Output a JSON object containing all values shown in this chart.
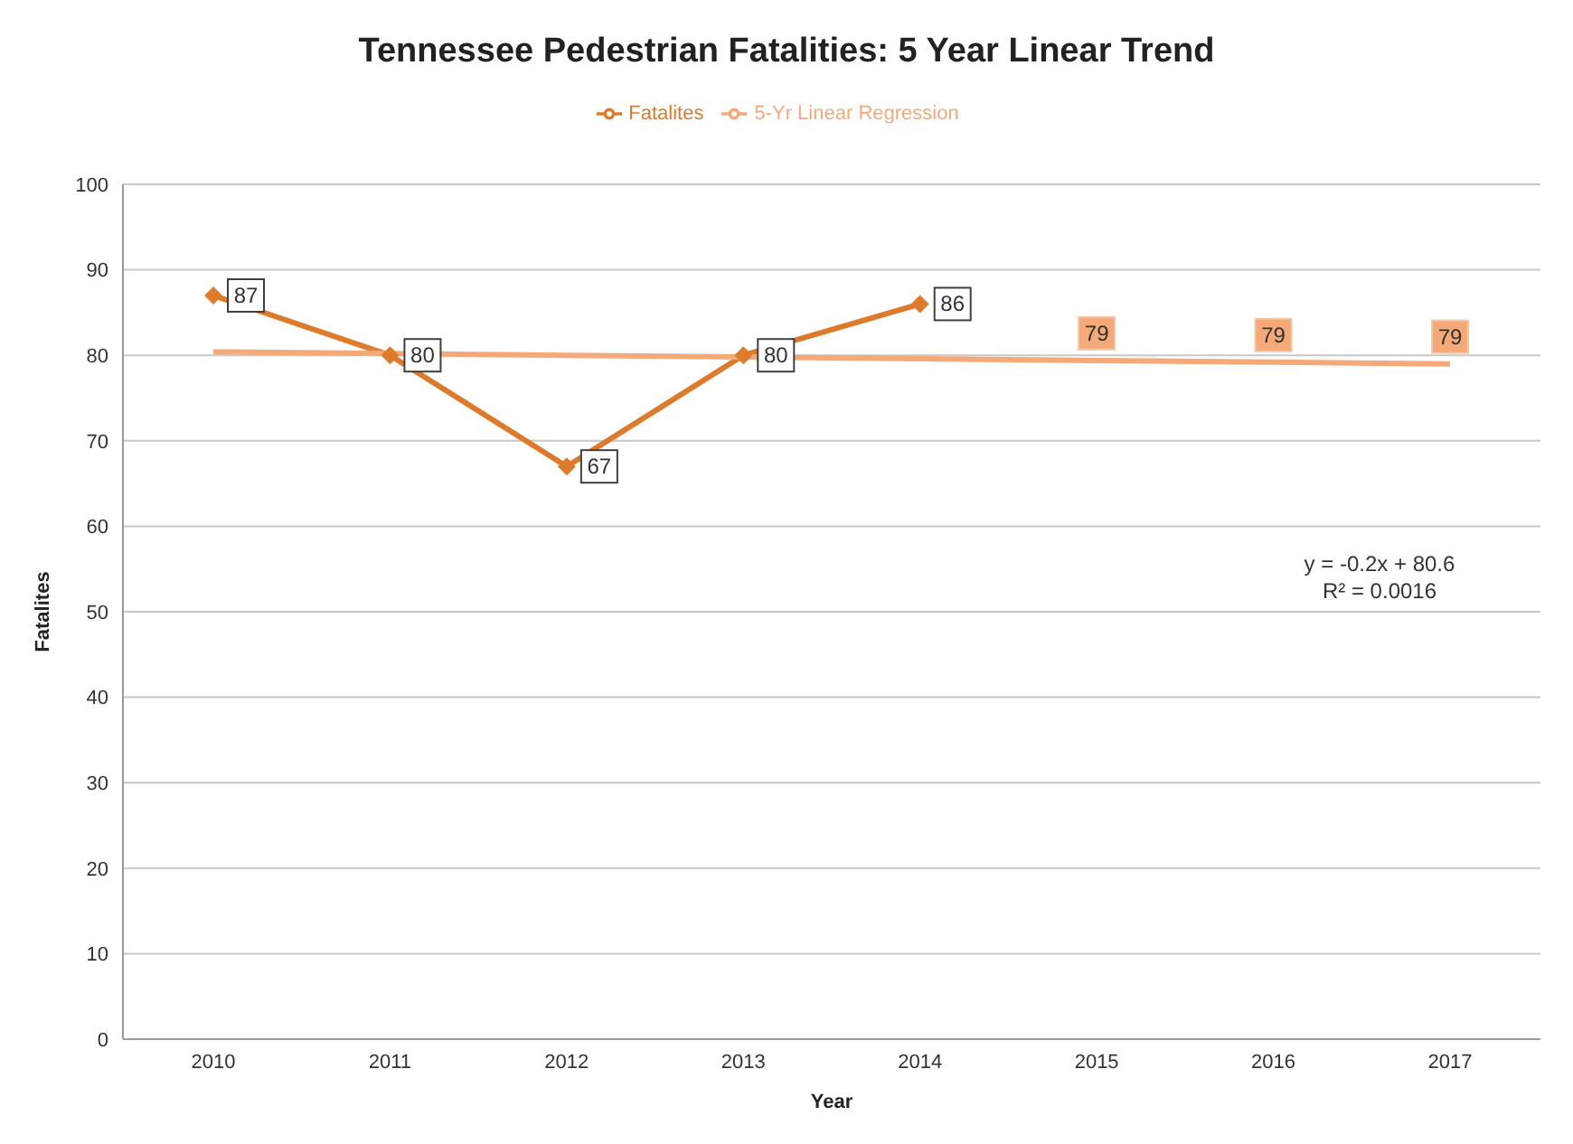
{
  "chart_data": {
    "type": "line",
    "title": "Tennessee Pedestrian Fatalities: 5 Year Linear Trend",
    "xlabel": "Year",
    "ylabel": "Fatalites",
    "categories": [
      "2010",
      "2011",
      "2012",
      "2013",
      "2014",
      "2015",
      "2016",
      "2017"
    ],
    "series": [
      {
        "name": "Fatalites",
        "color": "#dd7a2c",
        "marker": "diamond",
        "values": [
          87,
          80,
          67,
          80,
          86,
          null,
          null,
          null
        ],
        "value_labels": [
          "87",
          "80",
          "67",
          "80",
          "86",
          null,
          null,
          null
        ]
      },
      {
        "name": "5-Yr Linear Regression",
        "color": "#f5a878",
        "marker": "none",
        "values": [
          80.4,
          80.2,
          80.0,
          79.8,
          79.6,
          79.4,
          79.2,
          79.0
        ],
        "value_labels": [
          null,
          null,
          null,
          null,
          null,
          "79",
          "79",
          "79"
        ]
      }
    ],
    "ylim": [
      0,
      100
    ],
    "yticks": [
      0,
      10,
      20,
      30,
      40,
      50,
      60,
      70,
      80,
      90,
      100
    ],
    "grid": "y",
    "legend": "top",
    "annotations": [
      "y = -0.2x + 80.6",
      "R² = 0.0016"
    ]
  }
}
